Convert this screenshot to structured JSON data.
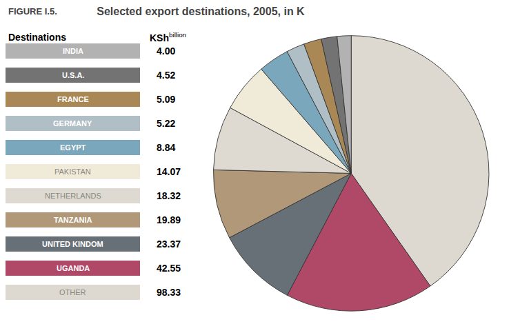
{
  "chart_data": {
    "type": "pie",
    "title": "Selected export destinations, 2005, in K",
    "annotations": [
      "FIGURE I.5.",
      "Destinations",
      "KSh",
      "billion"
    ],
    "categories": [
      "OTHER",
      "UGANDA",
      "UNITED KINDOM",
      "TANZANIA",
      "NETHERLANDS",
      "PAKISTAN",
      "EGYPT",
      "GERMANY",
      "FRANCE",
      "U.S.A.",
      "INDIA"
    ],
    "values": [
      98.33,
      42.55,
      23.37,
      19.89,
      18.32,
      14.07,
      8.84,
      5.22,
      5.09,
      4.52,
      4.0
    ],
    "value_labels": [
      "98.33",
      "42.55",
      "23.37",
      "19.89",
      "18.32",
      "14.07",
      "8.84",
      "5.22",
      "5.09",
      "4.52",
      "4.00"
    ],
    "colors": [
      "#ddd8d0",
      "#b04868",
      "#687077",
      "#b09878",
      "#dedad2",
      "#f0ead8",
      "#7ba7bc",
      "#b0bec5",
      "#aa8855",
      "#737373",
      "#b2b2b2"
    ]
  }
}
